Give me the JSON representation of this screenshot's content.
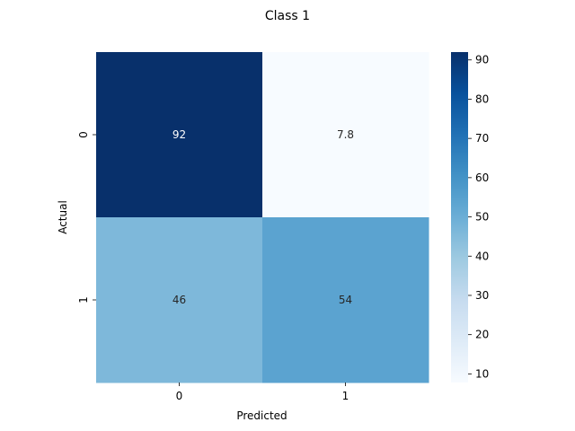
{
  "chart_data": {
    "type": "heatmap",
    "title": "Class 1",
    "xlabel": "Predicted",
    "ylabel": "Actual",
    "x_categories": [
      "0",
      "1"
    ],
    "y_categories": [
      "0",
      "1"
    ],
    "values": [
      [
        92,
        7.8
      ],
      [
        46,
        54
      ]
    ],
    "value_labels": [
      [
        "92",
        "7.8"
      ],
      [
        "46",
        "54"
      ]
    ],
    "colorbar": {
      "range": [
        7.8,
        92
      ],
      "ticks": [
        10,
        20,
        30,
        40,
        50,
        60,
        70,
        80,
        90
      ],
      "colormap": "Blues"
    }
  }
}
